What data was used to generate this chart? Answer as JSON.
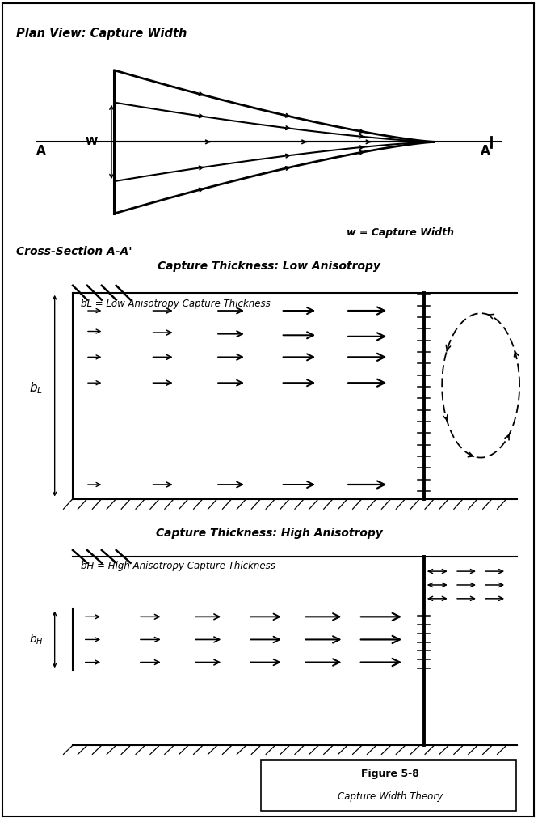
{
  "title": "Plan View: Capture Width",
  "cross_section_label": "Cross-Section A-A'",
  "low_aniso_title": "Capture Thickness: Low Anisotropy",
  "high_aniso_title": "Capture Thickness: High Anisotropy",
  "fig_label": "Figure 5-8",
  "fig_sublabel": "Capture Width Theory",
  "capture_width_label": "w = Capture Width",
  "bL_label": "b_L",
  "bH_label": "b_H",
  "bL_eq": "bL = Low Anisotropy Capture Thickness",
  "bH_eq": "bH = High Anisotropy Capture Thickness",
  "bg_color": "#f5f5f5",
  "line_color": "#1a1a1a",
  "arrow_color": "#1a1a1a"
}
